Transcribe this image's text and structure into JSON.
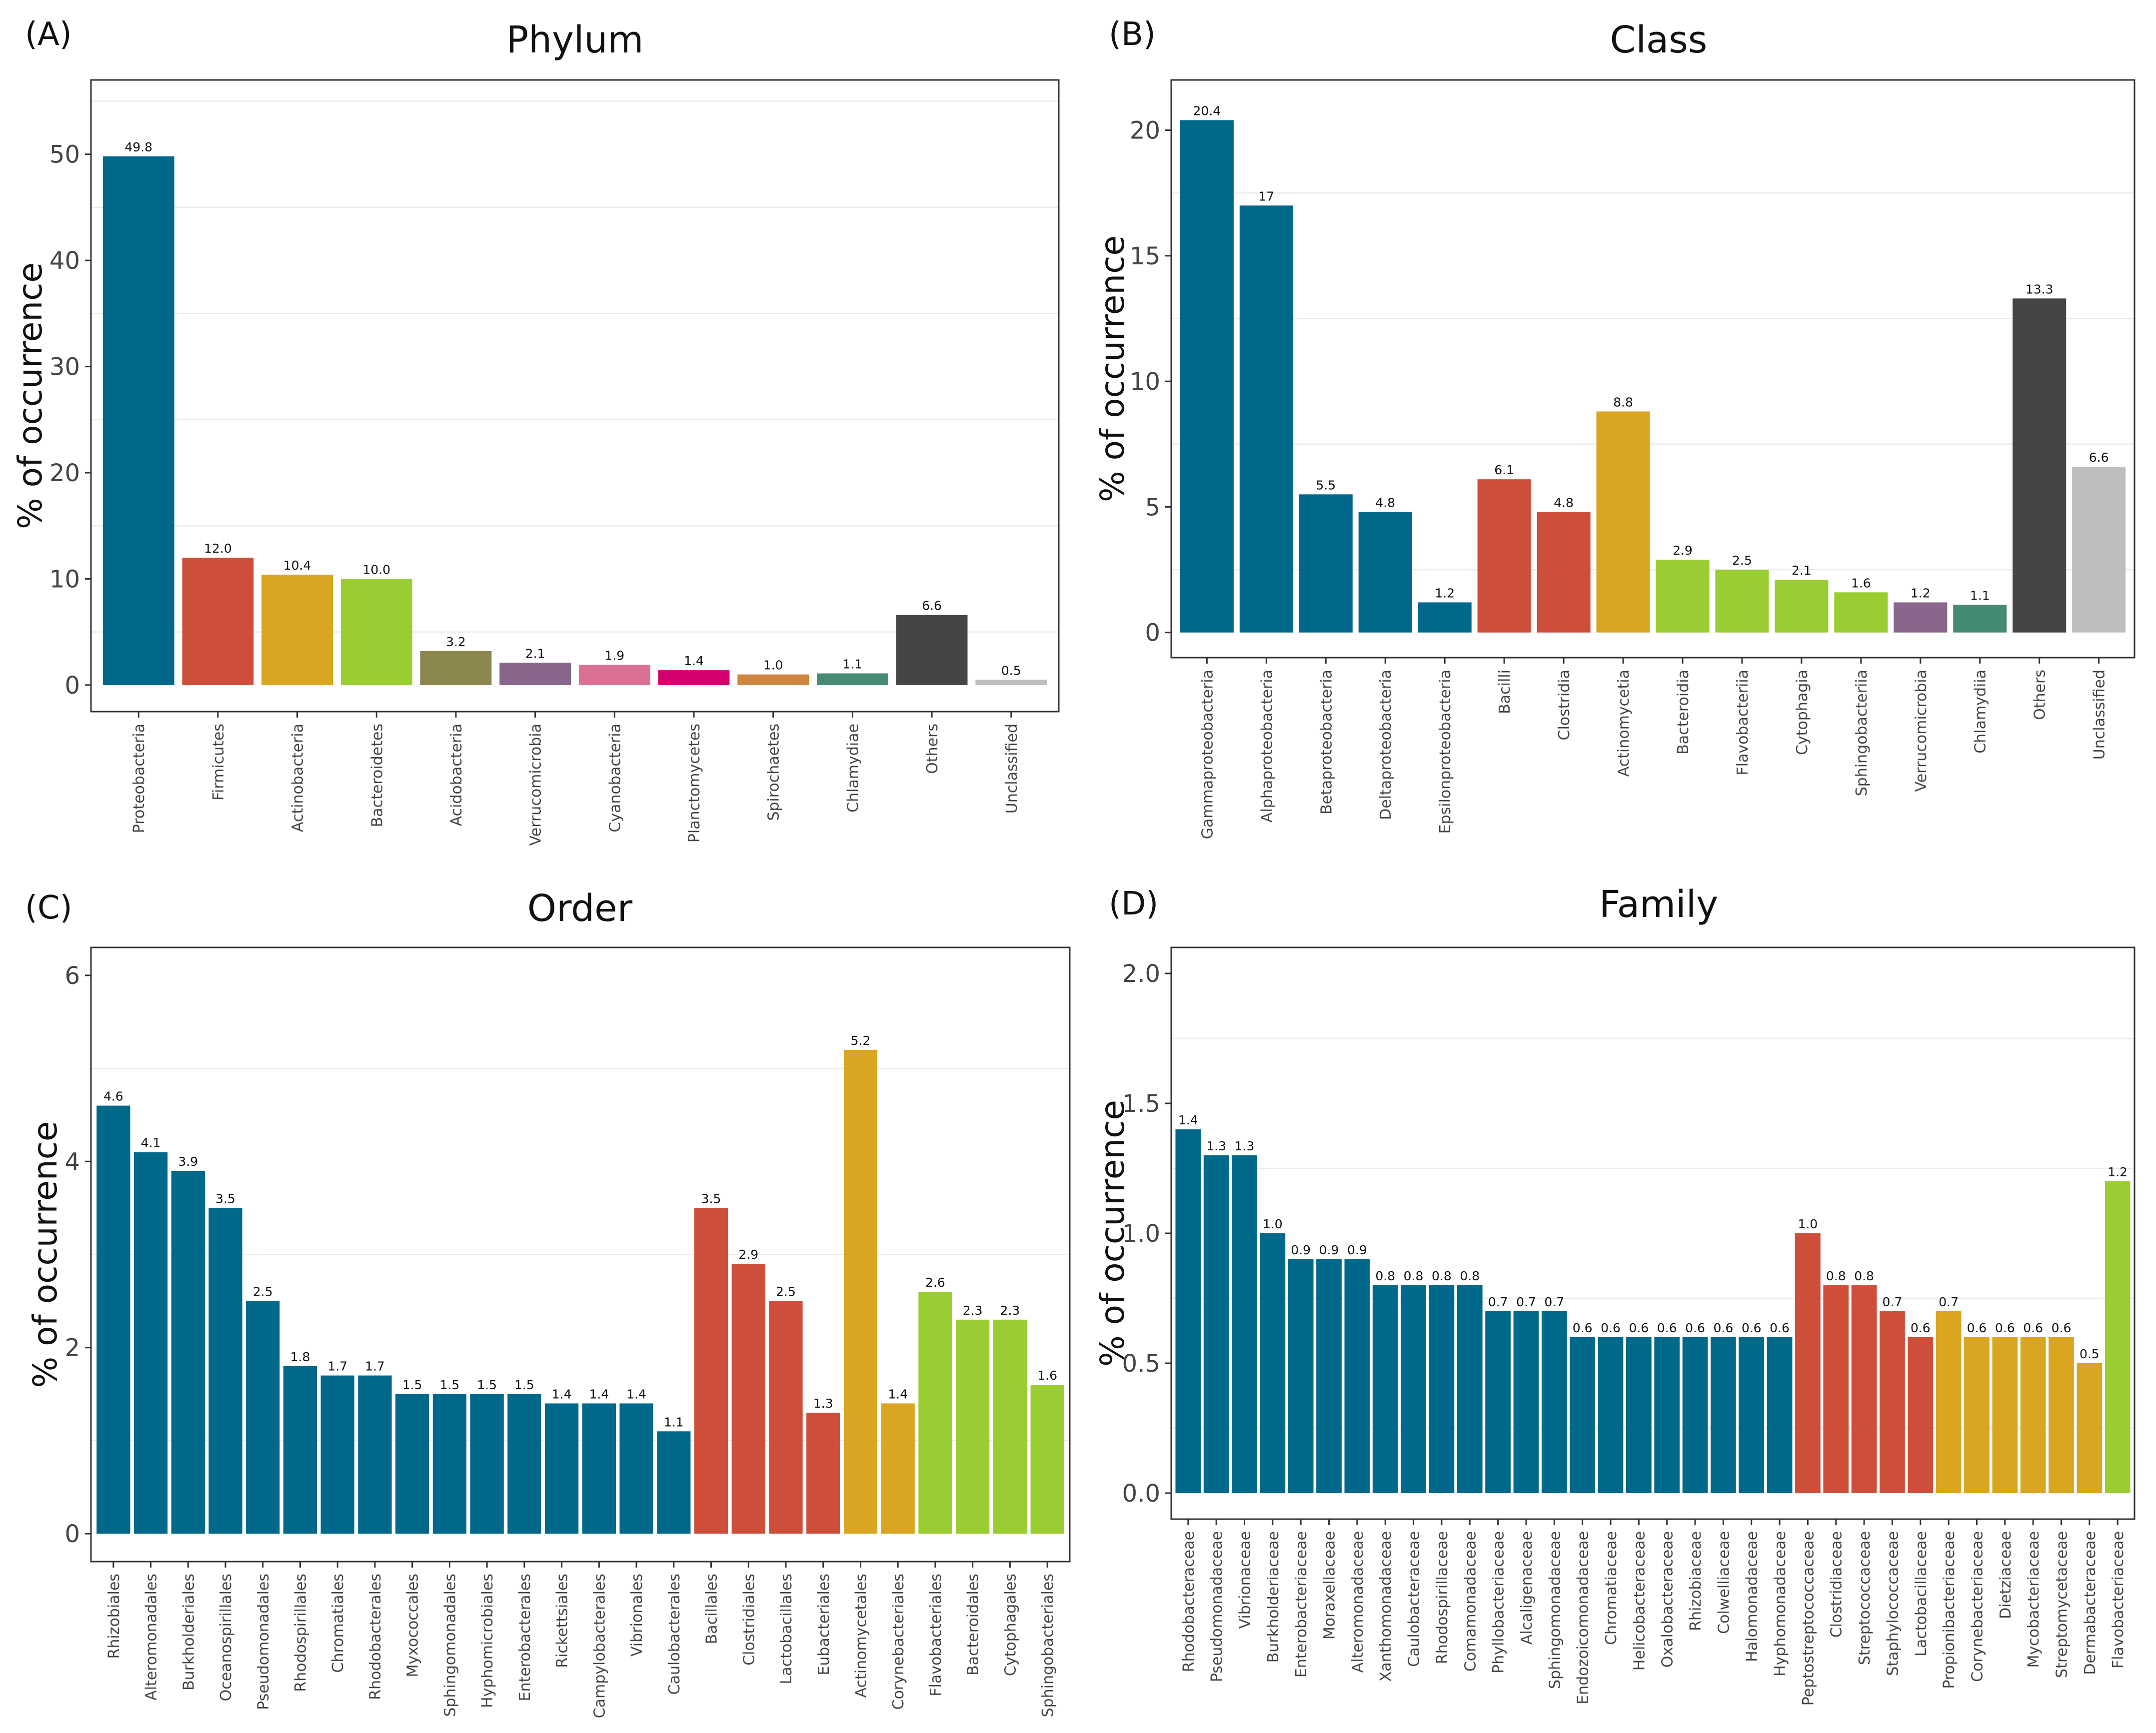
{
  "chart_data": [
    {
      "panel": "(A)",
      "type": "bar",
      "title": "Phylum",
      "xlabel": "",
      "ylabel": "% of occurrence",
      "ylim": [
        -2.5,
        57
      ],
      "yticks": [
        0,
        10,
        20,
        30,
        40,
        50
      ],
      "categories": [
        "Proteobacteria",
        "Firmicutes",
        "Actinobacteria",
        "Bacteroidetes",
        "Acidobacteria",
        "Verrucomicrobia",
        "Cyanobacteria",
        "Planctomycetes",
        "Spirochaetes",
        "Chlamydiae",
        "Others",
        "Unclassified"
      ],
      "values": [
        49.8,
        12.0,
        10.4,
        10.0,
        3.2,
        2.1,
        1.9,
        1.4,
        1.0,
        1.1,
        6.6,
        0.5
      ],
      "labels": [
        "49.8",
        "12.0",
        "10.4",
        "10.0",
        "3.2",
        "2.1",
        "1.9",
        "1.4",
        "1.0",
        "1.1",
        "6.6",
        "0.5"
      ],
      "colors": [
        "#00688B",
        "#CD4F39",
        "#DAA520",
        "#9ACD32",
        "#8B864E",
        "#8B668B",
        "#DB7093",
        "#D4006E",
        "#CD853F",
        "#458B74",
        "#454545",
        "#BEBEBE"
      ]
    },
    {
      "panel": "(B)",
      "type": "bar",
      "title": "Class",
      "xlabel": "",
      "ylabel": "% of occurrence",
      "ylim": [
        -1,
        22
      ],
      "yticks": [
        0,
        5,
        10,
        15,
        20
      ],
      "categories": [
        "Gammaproteobacteria",
        "Alphaproteobacteria",
        "Betaproteobacteria",
        "Deltaproteobacteria",
        "Epsilonproteobacteria",
        "Bacilli",
        "Clostridia",
        "Actinomycetia",
        "Bacteroidia",
        "Flavobacteriia",
        "Cytophagia",
        "Sphingobacteriia",
        "Verrucomicrobia",
        "Chlamydiia",
        "Others",
        "Unclassified"
      ],
      "values": [
        20.4,
        17,
        5.5,
        4.8,
        1.2,
        6.1,
        4.8,
        8.8,
        2.9,
        2.5,
        2.1,
        1.6,
        1.2,
        1.1,
        13.3,
        6.6
      ],
      "labels": [
        "20.4",
        "17",
        "5.5",
        "4.8",
        "1.2",
        "6.1",
        "4.8",
        "8.8",
        "2.9",
        "2.5",
        "2.1",
        "1.6",
        "1.2",
        "1.1",
        "13.3",
        "6.6"
      ],
      "colors": [
        "#00688B",
        "#00688B",
        "#00688B",
        "#00688B",
        "#00688B",
        "#CD4F39",
        "#CD4F39",
        "#DAA520",
        "#9ACD32",
        "#9ACD32",
        "#9ACD32",
        "#9ACD32",
        "#8B668B",
        "#458B74",
        "#454545",
        "#BEBEBE"
      ]
    },
    {
      "panel": "(C)",
      "type": "bar",
      "title": "Order",
      "xlabel": "",
      "ylabel": "% of occurrence",
      "ylim": [
        -0.3,
        6.3
      ],
      "yticks": [
        0,
        2,
        4,
        6
      ],
      "categories": [
        "Rhizobiales",
        "Alteromonadales",
        "Burkholderiales",
        "Oceanospirillales",
        "Pseudomonadales",
        "Rhodospirillales",
        "Chromatiales",
        "Rhodobacterales",
        "Myxococcales",
        "Sphingomonadales",
        "Hyphomicrobiales",
        "Enterobacterales",
        "Rickettsiales",
        "Campylobacterales",
        "Vibrionales",
        "Caulobacterales",
        "Bacillales",
        "Clostridiales",
        "Lactobacillales",
        "Eubacteriales",
        "Actinomycetales",
        "Corynebacteriales",
        "Flavobacteriales",
        "Bacteroidales",
        "Cytophagales",
        "Sphingobacteriales"
      ],
      "values": [
        4.6,
        4.1,
        3.9,
        3.5,
        2.5,
        1.8,
        1.7,
        1.7,
        1.5,
        1.5,
        1.5,
        1.5,
        1.4,
        1.4,
        1.4,
        1.1,
        3.5,
        2.9,
        2.5,
        1.3,
        5.2,
        1.4,
        2.6,
        2.3,
        2.3,
        1.6
      ],
      "labels": [
        "4.6",
        "4.1",
        "3.9",
        "3.5",
        "2.5",
        "1.8",
        "1.7",
        "1.7",
        "1.5",
        "1.5",
        "1.5",
        "1.5",
        "1.4",
        "1.4",
        "1.4",
        "1.1",
        "3.5",
        "2.9",
        "2.5",
        "1.3",
        "5.2",
        "1.4",
        "2.6",
        "2.3",
        "2.3",
        "1.6"
      ],
      "colors": [
        "#00688B",
        "#00688B",
        "#00688B",
        "#00688B",
        "#00688B",
        "#00688B",
        "#00688B",
        "#00688B",
        "#00688B",
        "#00688B",
        "#00688B",
        "#00688B",
        "#00688B",
        "#00688B",
        "#00688B",
        "#00688B",
        "#CD4F39",
        "#CD4F39",
        "#CD4F39",
        "#CD4F39",
        "#DAA520",
        "#DAA520",
        "#9ACD32",
        "#9ACD32",
        "#9ACD32",
        "#9ACD32"
      ]
    },
    {
      "panel": "(D)",
      "type": "bar",
      "title": "Family",
      "xlabel": "",
      "ylabel": "% of occurrence",
      "ylim": [
        -0.1,
        2.1
      ],
      "yticks": [
        0.0,
        0.5,
        1.0,
        1.5,
        2.0
      ],
      "tick_format": "0.0",
      "categories": [
        "Rhodobacteraceae",
        "Pseudomonadaceae",
        "Vibrionaceae",
        "Burkholderiaceae",
        "Enterobacteriaceae",
        "Moraxellaceae",
        "Alteromonadaceae",
        "Xanthomonadaceae",
        "Caulobacteraceae",
        "Rhodospirillaceae",
        "Comamonadaceae",
        "Phyllobacteriaceae",
        "Alcaligenaceae",
        "Sphingomonadaceae",
        "Endozoicomonadaceae",
        "Chromatiaceae",
        "Helicobacteraceae",
        "Oxalobacteraceae",
        "Rhizobiaceae",
        "Colwelliaceae",
        "Halomonadaceae",
        "Hyphomonadaceae",
        "Peptostreptococcaceae",
        "Clostridiaceae",
        "Streptococcaceae",
        "Staphylococcaceae",
        "Lactobacillaceae",
        "Propionibacteriaceae",
        "Corynebacteriaceae",
        "Dietziaceae",
        "Mycobacteriaceae",
        "Streptomycetaceae",
        "Dermabacteraceae",
        "Flavobacteriaceae"
      ],
      "values": [
        1.4,
        1.3,
        1.3,
        1.0,
        0.9,
        0.9,
        0.9,
        0.8,
        0.8,
        0.8,
        0.8,
        0.7,
        0.7,
        0.7,
        0.6,
        0.6,
        0.6,
        0.6,
        0.6,
        0.6,
        0.6,
        0.6,
        1.0,
        0.8,
        0.8,
        0.7,
        0.6,
        0.7,
        0.6,
        0.6,
        0.6,
        0.6,
        0.5,
        1.2
      ],
      "labels": [
        "1.4",
        "1.3",
        "1.3",
        "1.0",
        "0.9",
        "0.9",
        "0.9",
        "0.8",
        "0.8",
        "0.8",
        "0.8",
        "0.7",
        "0.7",
        "0.7",
        "0.6",
        "0.6",
        "0.6",
        "0.6",
        "0.6",
        "0.6",
        "0.6",
        "0.6",
        "1.0",
        "0.8",
        "0.8",
        "0.7",
        "0.6",
        "0.7",
        "0.6",
        "0.6",
        "0.6",
        "0.6",
        "0.5",
        "1.2"
      ],
      "colors": [
        "#00688B",
        "#00688B",
        "#00688B",
        "#00688B",
        "#00688B",
        "#00688B",
        "#00688B",
        "#00688B",
        "#00688B",
        "#00688B",
        "#00688B",
        "#00688B",
        "#00688B",
        "#00688B",
        "#00688B",
        "#00688B",
        "#00688B",
        "#00688B",
        "#00688B",
        "#00688B",
        "#00688B",
        "#00688B",
        "#CD4F39",
        "#CD4F39",
        "#CD4F39",
        "#CD4F39",
        "#CD4F39",
        "#DAA520",
        "#DAA520",
        "#DAA520",
        "#DAA520",
        "#DAA520",
        "#DAA520",
        "#9ACD32"
      ]
    }
  ]
}
